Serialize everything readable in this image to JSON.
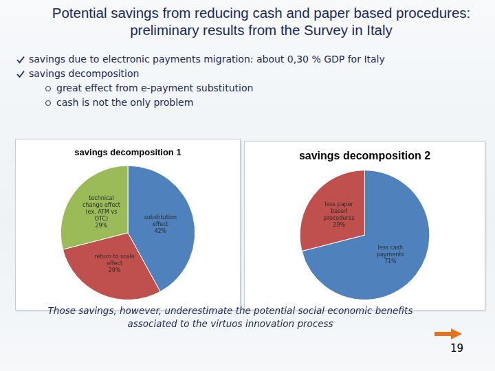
{
  "title": "Potential savings from reducing cash and paper based procedures: preliminary results from the Survey in Italy",
  "bullets": [
    {
      "text": "savings due to electronic payments migration: about 0,30 % GDP for Italy",
      "sub": []
    },
    {
      "text": "savings decomposition",
      "sub": [
        "great effect from e-payment substitution",
        "cash is not the only problem"
      ]
    }
  ],
  "chart_data": [
    {
      "type": "pie",
      "title": "savings decomposition 1",
      "categories": [
        "substitution effect",
        "return to scale effect",
        "technical change effect (ex. ATM vs OTC)"
      ],
      "values": [
        42,
        29,
        29
      ],
      "value_labels": [
        "42%",
        "29%",
        "29%"
      ],
      "colors": [
        "#4f81bd",
        "#c0504d",
        "#9bbb59"
      ],
      "data_labels": true
    },
    {
      "type": "pie",
      "title": "savings decomposition 2",
      "categories": [
        "less cash payments",
        "less paper based procedures"
      ],
      "values": [
        71,
        29
      ],
      "value_labels": [
        "71%",
        "29%"
      ],
      "colors": [
        "#4f81bd",
        "#c0504d"
      ],
      "data_labels": true
    }
  ],
  "footer": "Those savings, however, underestimate the potential social economic benefits associated to the virtuos innovation process",
  "page": 19
}
